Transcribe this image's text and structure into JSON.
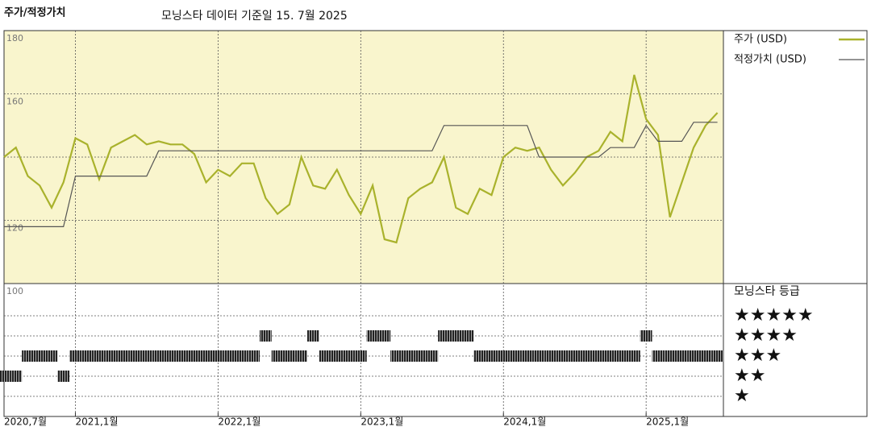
{
  "header": {
    "title": "주가/적정가치",
    "subtitle": "모닝스타 데이터 기준일 15. 7월 2025"
  },
  "chart_data": [
    {
      "type": "line",
      "x": [
        "2020-07",
        "2020-08",
        "2020-09",
        "2020-10",
        "2020-11",
        "2020-12",
        "2021-01",
        "2021-02",
        "2021-03",
        "2021-04",
        "2021-05",
        "2021-06",
        "2021-07",
        "2021-08",
        "2021-09",
        "2021-10",
        "2021-11",
        "2021-12",
        "2022-01",
        "2022-02",
        "2022-03",
        "2022-04",
        "2022-05",
        "2022-06",
        "2022-07",
        "2022-08",
        "2022-09",
        "2022-10",
        "2022-11",
        "2022-12",
        "2023-01",
        "2023-02",
        "2023-03",
        "2023-04",
        "2023-05",
        "2023-06",
        "2023-07",
        "2023-08",
        "2023-09",
        "2023-10",
        "2023-11",
        "2023-12",
        "2024-01",
        "2024-02",
        "2024-03",
        "2024-04",
        "2024-05",
        "2024-06",
        "2024-07",
        "2024-08",
        "2024-09",
        "2024-10",
        "2024-11",
        "2024-12",
        "2025-01",
        "2025-02",
        "2025-03",
        "2025-04",
        "2025-05",
        "2025-06",
        "2025-07"
      ],
      "series": [
        {
          "name": "주가 (USD)",
          "color": "#a9b22c",
          "values": [
            140,
            143,
            134,
            131,
            124,
            132,
            146,
            144,
            133,
            143,
            145,
            147,
            144,
            145,
            144,
            144,
            141,
            132,
            136,
            134,
            138,
            138,
            127,
            122,
            125,
            140,
            131,
            130,
            136,
            128,
            122,
            131,
            114,
            113,
            127,
            130,
            132,
            140,
            124,
            122,
            130,
            128,
            140,
            143,
            142,
            143,
            136,
            131,
            135,
            140,
            142,
            148,
            145,
            166,
            152,
            147,
            121,
            132,
            143,
            150,
            154
          ]
        },
        {
          "name": "적정가치 (USD)",
          "color": "#555555",
          "values": [
            118,
            118,
            118,
            118,
            118,
            118,
            134,
            134,
            134,
            134,
            134,
            134,
            134,
            142,
            142,
            142,
            142,
            142,
            142,
            142,
            142,
            142,
            142,
            142,
            142,
            142,
            142,
            142,
            142,
            142,
            142,
            142,
            142,
            142,
            142,
            142,
            142,
            150,
            150,
            150,
            150,
            150,
            150,
            150,
            150,
            140,
            140,
            140,
            140,
            140,
            140,
            143,
            143,
            143,
            150,
            145,
            145,
            145,
            151,
            151,
            151
          ]
        }
      ],
      "ylim": [
        100,
        180
      ],
      "yticks": [
        100,
        120,
        160,
        180
      ],
      "ygrid": [
        120,
        140,
        160
      ],
      "xticks": [
        {
          "value": "2020-07",
          "label": "2020,7월"
        },
        {
          "value": "2021-01",
          "label": "2021,1월"
        },
        {
          "value": "2022-01",
          "label": "2022,1월"
        },
        {
          "value": "2023-01",
          "label": "2023,1월"
        },
        {
          "value": "2024-01",
          "label": "2024,1월"
        },
        {
          "value": "2025-01",
          "label": "2025,1월"
        }
      ],
      "grid": true
    },
    {
      "type": "rating",
      "title": "모닝스타 등급",
      "levels": [
        "★",
        "★★",
        "★★★",
        "★★★★",
        "★★★★★"
      ],
      "values": [
        2,
        2,
        3,
        3,
        3,
        2,
        3,
        3,
        3,
        3,
        3,
        3,
        3,
        3,
        3,
        3,
        3,
        3,
        3,
        3,
        3,
        3,
        4,
        3,
        3,
        3,
        4,
        3,
        3,
        3,
        3,
        4,
        4,
        3,
        3,
        3,
        3,
        4,
        4,
        4,
        3,
        3,
        3,
        3,
        3,
        3,
        3,
        3,
        3,
        3,
        3,
        3,
        3,
        3,
        4,
        3,
        3,
        3,
        3,
        3,
        3
      ]
    }
  ]
}
